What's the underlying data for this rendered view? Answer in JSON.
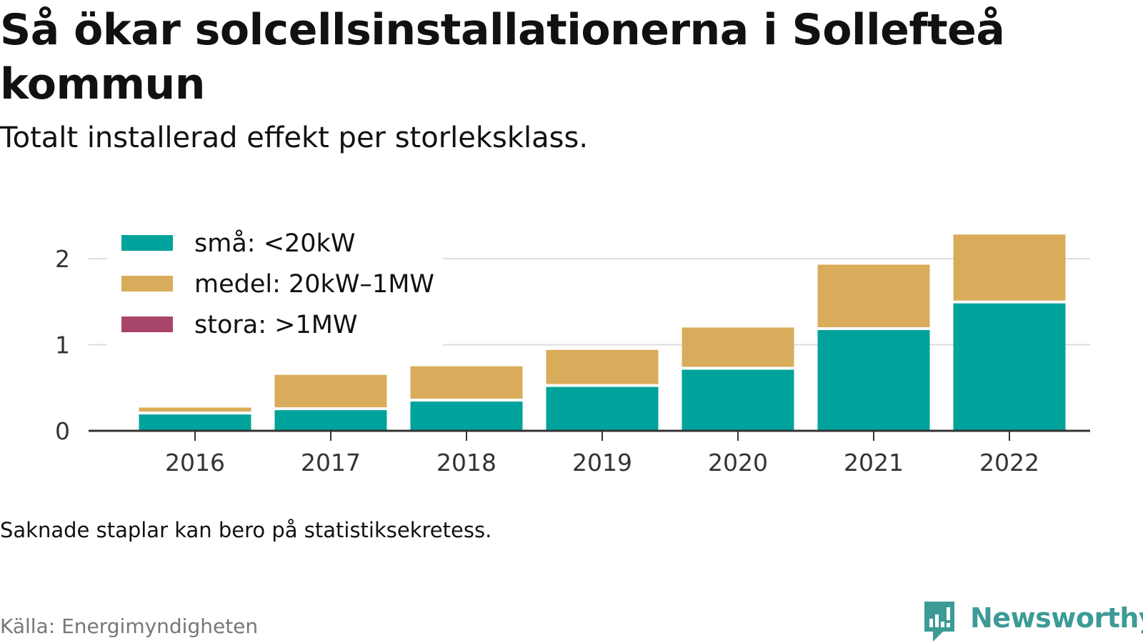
{
  "title": "Så ökar solcellsinstallationerna i Sollefteå kommun",
  "subtitle": "Totalt installerad effekt per storleksklass.",
  "note": "Saknade staplar kan bero på statistiksekretess.",
  "source": "Källa: Energimyndigheten",
  "brand": {
    "name": "Newsworthy",
    "color": "#3d9b97"
  },
  "chart_data": {
    "type": "bar",
    "stacked": true,
    "categories": [
      "2016",
      "2017",
      "2018",
      "2019",
      "2020",
      "2021",
      "2022"
    ],
    "series": [
      {
        "name": "små: <20kW",
        "color": "#00a39b",
        "values": [
          0.19,
          0.24,
          0.34,
          0.51,
          0.71,
          1.17,
          1.48
        ]
      },
      {
        "name": "medel: 20kW–1MW",
        "color": "#d9ac5b",
        "values": [
          0.08,
          0.41,
          0.41,
          0.43,
          0.49,
          0.76,
          0.8
        ]
      },
      {
        "name": "stora: >1MW",
        "color": "#a8456b",
        "values": [
          0,
          0,
          0,
          0,
          0,
          0,
          0
        ]
      }
    ],
    "y_ticks": [
      "0",
      "1",
      "2"
    ],
    "ylim": [
      0,
      2.3
    ],
    "grid": true,
    "legend_position": "top-left"
  }
}
